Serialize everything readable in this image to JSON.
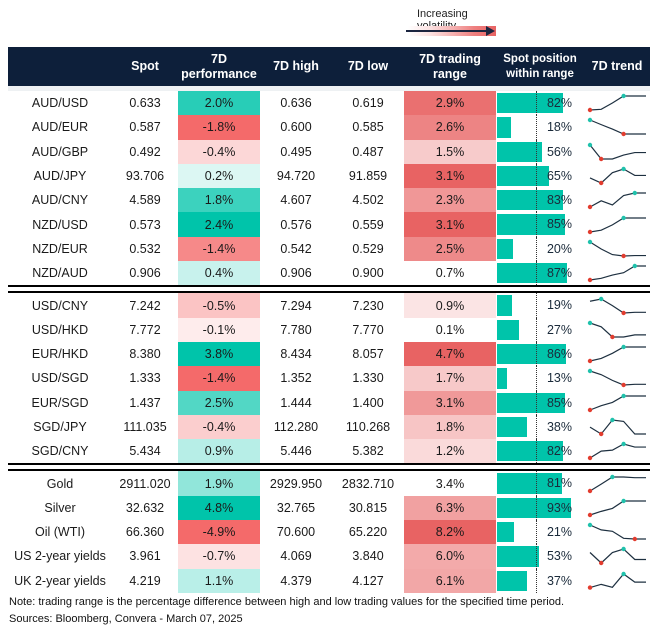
{
  "legend": {
    "label": "Increasing volatility"
  },
  "headers": {
    "name": "",
    "spot": "Spot",
    "perf_1": "7D",
    "perf_2": "performance",
    "high": "7D high",
    "low": "7D low",
    "range_1": "7D trading",
    "range_2": "range",
    "pos_1": "Spot position",
    "pos_2": "within range",
    "trend": "7D trend"
  },
  "colors": {
    "header_bg": "#0d1f3a",
    "positive": "#00c4aa",
    "negative": "#f46a6a",
    "range": "#e86363",
    "position_bar": "#00c4aa",
    "min_dot": "#e23c2e",
    "max_dot": "#1fc2ac",
    "line": "#1e3040"
  },
  "groups": [
    {
      "rows": [
        {
          "name": "AUD/USD",
          "spot": "0.633",
          "perf": 2.0,
          "perf_label": "2.0%",
          "high": "0.636",
          "low": "0.619",
          "range": 2.9,
          "range_label": "2.9%",
          "position": 82,
          "position_label": "82%",
          "trend": [
            0,
            0.05,
            0.5,
            1,
            1,
            1
          ]
        },
        {
          "name": "AUD/EUR",
          "spot": "0.587",
          "perf": -1.8,
          "perf_label": "-1.8%",
          "high": "0.600",
          "low": "0.585",
          "range": 2.6,
          "range_label": "2.6%",
          "position": 18,
          "position_label": "18%",
          "trend": [
            1,
            0.67,
            0.35,
            0,
            0,
            0
          ]
        },
        {
          "name": "AUD/GBP",
          "spot": "0.492",
          "perf": -0.4,
          "perf_label": "-0.4%",
          "high": "0.495",
          "low": "0.487",
          "range": 1.5,
          "range_label": "1.5%",
          "position": 56,
          "position_label": "56%",
          "trend": [
            1,
            0,
            0,
            0.28,
            0.46,
            0.46
          ]
        },
        {
          "name": "AUD/JPY",
          "spot": "93.706",
          "perf": 0.2,
          "perf_label": "0.2%",
          "high": "94.720",
          "low": "91.859",
          "range": 3.1,
          "range_label": "3.1%",
          "position": 65,
          "position_label": "65%",
          "trend": [
            0.36,
            0,
            0.74,
            1,
            0.54,
            0.54
          ]
        },
        {
          "name": "AUD/CNY",
          "spot": "4.589",
          "perf": 1.8,
          "perf_label": "1.8%",
          "high": "4.607",
          "low": "4.502",
          "range": 2.3,
          "range_label": "2.3%",
          "position": 83,
          "position_label": "83%",
          "trend": [
            0,
            0.44,
            0.15,
            0.82,
            1,
            1
          ]
        },
        {
          "name": "NZD/USD",
          "spot": "0.573",
          "perf": 2.4,
          "perf_label": "2.4%",
          "high": "0.576",
          "low": "0.559",
          "range": 3.1,
          "range_label": "3.1%",
          "position": 85,
          "position_label": "85%",
          "trend": [
            0,
            0.13,
            0.51,
            1,
            1,
            1
          ]
        },
        {
          "name": "NZD/EUR",
          "spot": "0.532",
          "perf": -1.4,
          "perf_label": "-1.4%",
          "high": "0.542",
          "low": "0.529",
          "range": 2.5,
          "range_label": "2.5%",
          "position": 20,
          "position_label": "20%",
          "trend": [
            1,
            0.5,
            0.1,
            0,
            0.03,
            0.03
          ]
        },
        {
          "name": "NZD/AUD",
          "spot": "0.906",
          "perf": 0.4,
          "perf_label": "0.4%",
          "high": "0.906",
          "low": "0.900",
          "range": 0.7,
          "range_label": "0.7%",
          "position": 87,
          "position_label": "87%",
          "trend": [
            0,
            0.12,
            0.35,
            0.52,
            1,
            1
          ]
        }
      ]
    },
    {
      "rows": [
        {
          "name": "USD/CNY",
          "spot": "7.242",
          "perf": -0.5,
          "perf_label": "-0.5%",
          "high": "7.294",
          "low": "7.230",
          "range": 0.9,
          "range_label": "0.9%",
          "position": 19,
          "position_label": "19%",
          "trend": [
            0.84,
            1,
            0.53,
            0,
            0.05,
            0.05
          ]
        },
        {
          "name": "USD/HKD",
          "spot": "7.772",
          "perf": -0.1,
          "perf_label": "-0.1%",
          "high": "7.780",
          "low": "7.770",
          "range": 0.1,
          "range_label": "0.1%",
          "position": 27,
          "position_label": "27%",
          "trend": [
            1,
            0.73,
            0,
            0,
            0.15,
            0.15
          ]
        },
        {
          "name": "EUR/HKD",
          "spot": "8.380",
          "perf": 3.8,
          "perf_label": "3.8%",
          "high": "8.434",
          "low": "8.057",
          "range": 4.7,
          "range_label": "4.7%",
          "position": 86,
          "position_label": "86%",
          "trend": [
            0,
            0.18,
            0.55,
            1,
            1,
            1
          ]
        },
        {
          "name": "USD/SGD",
          "spot": "1.333",
          "perf": -1.4,
          "perf_label": "-1.4%",
          "high": "1.352",
          "low": "1.330",
          "range": 1.7,
          "range_label": "1.7%",
          "position": 13,
          "position_label": "13%",
          "trend": [
            1,
            0.74,
            0.33,
            0,
            0.05,
            0.05
          ]
        },
        {
          "name": "EUR/SGD",
          "spot": "1.437",
          "perf": 2.5,
          "perf_label": "2.5%",
          "high": "1.444",
          "low": "1.400",
          "range": 3.1,
          "range_label": "3.1%",
          "position": 85,
          "position_label": "85%",
          "trend": [
            0,
            0.31,
            0.54,
            1,
            1,
            1
          ]
        },
        {
          "name": "SGD/JPY",
          "spot": "111.035",
          "perf": -0.4,
          "perf_label": "-0.4%",
          "high": "112.280",
          "low": "110.268",
          "range": 1.8,
          "range_label": "1.8%",
          "position": 38,
          "position_label": "38%",
          "trend": [
            0.49,
            0,
            1,
            0.9,
            0,
            0
          ]
        },
        {
          "name": "SGD/CNY",
          "spot": "5.434",
          "perf": 0.9,
          "perf_label": "0.9%",
          "high": "5.446",
          "low": "5.382",
          "range": 1.2,
          "range_label": "1.2%",
          "position": 82,
          "position_label": "82%",
          "trend": [
            0,
            0.49,
            0.56,
            1,
            0.78,
            0.78
          ]
        }
      ]
    },
    {
      "rows": [
        {
          "name": "Gold",
          "spot": "2911.020",
          "perf": 1.9,
          "perf_label": "1.9%",
          "high": "2929.950",
          "low": "2832.710",
          "range": 3.4,
          "range_label": "3.4%",
          "position": 81,
          "position_label": "81%",
          "trend": [
            0,
            0.49,
            1,
            1,
            0.95,
            0.95
          ]
        },
        {
          "name": "Silver",
          "spot": "32.632",
          "perf": 4.8,
          "perf_label": "4.8%",
          "high": "32.765",
          "low": "30.815",
          "range": 6.3,
          "range_label": "6.3%",
          "position": 93,
          "position_label": "93%",
          "trend": [
            0,
            0.26,
            0.47,
            1,
            1,
            1
          ]
        },
        {
          "name": "Oil (WTI)",
          "spot": "66.360",
          "perf": -4.9,
          "perf_label": "-4.9%",
          "high": "70.600",
          "low": "65.220",
          "range": 8.2,
          "range_label": "8.2%",
          "position": 21,
          "position_label": "21%",
          "trend": [
            1,
            0.65,
            0.55,
            0.05,
            0,
            0
          ]
        },
        {
          "name": "US 2-year yields",
          "spot": "3.961",
          "perf": -0.7,
          "perf_label": "-0.7%",
          "high": "4.069",
          "low": "3.840",
          "range": 6.0,
          "range_label": "6.0%",
          "position": 53,
          "position_label": "53%",
          "trend": [
            0.75,
            0,
            0.75,
            1,
            0.25,
            0.25
          ]
        },
        {
          "name": "UK 2-year yields",
          "spot": "4.219",
          "perf": 1.1,
          "perf_label": "1.1%",
          "high": "4.379",
          "low": "4.127",
          "range": 6.1,
          "range_label": "6.1%",
          "position": 37,
          "position_label": "37%",
          "trend": [
            0.03,
            0.26,
            0.05,
            1,
            0.42,
            0.42
          ]
        }
      ]
    }
  ],
  "footer": {
    "note": "Note: trading range is the percentage difference between high and low trading values for the specified time period.",
    "sources": "Sources: Bloomberg, Convera - March 07, 2025"
  }
}
